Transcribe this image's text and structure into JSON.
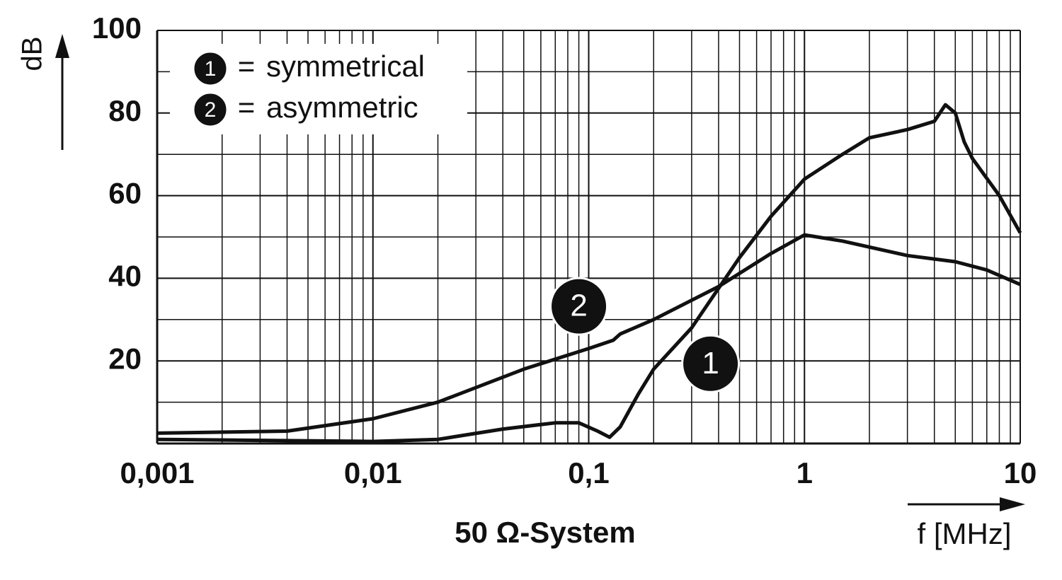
{
  "chart_data": {
    "type": "line",
    "x_label": "f [MHz]",
    "y_label": "dB",
    "caption": "50 Ω-System",
    "xlim": [
      0.001,
      10
    ],
    "xticks": [
      {
        "value": 0.001,
        "label": "0,001"
      },
      {
        "value": 0.01,
        "label": "0,01"
      },
      {
        "value": 0.1,
        "label": "0,1"
      },
      1,
      10
    ],
    "x_scale": "log",
    "ylim": [
      0,
      100
    ],
    "yticks": [
      20,
      40,
      60,
      80,
      100
    ],
    "grid": true,
    "minor_grid": true,
    "legend_position": "upper left",
    "legend_separator": "=",
    "series": [
      {
        "name": "symmetrical",
        "label": "1",
        "color": "#111111",
        "x": [
          0.001,
          0.01,
          0.02,
          0.04,
          0.07,
          0.09,
          0.11,
          0.125,
          0.14,
          0.17,
          0.2,
          0.3,
          0.5,
          0.7,
          1,
          1.5,
          2,
          3,
          4,
          4.5,
          5,
          5.5,
          6,
          8,
          10
        ],
        "values": [
          1,
          0.5,
          1,
          3.5,
          5,
          5,
          3,
          1.5,
          4,
          12,
          18,
          28,
          45,
          55,
          64,
          70,
          74,
          76,
          78,
          82,
          80,
          73,
          69,
          60,
          51
        ]
      },
      {
        "name": "asymmetric",
        "label": "2",
        "color": "#111111",
        "x": [
          0.001,
          0.004,
          0.01,
          0.02,
          0.05,
          0.1,
          0.13,
          0.14,
          0.2,
          0.4,
          0.7,
          1,
          1.5,
          3,
          5,
          7,
          10
        ],
        "values": [
          2.5,
          3,
          6,
          10,
          18,
          23,
          25,
          26.5,
          30,
          38,
          46,
          50.5,
          49,
          45.5,
          44,
          42,
          38.5
        ]
      }
    ],
    "annotations": [
      {
        "text": "2",
        "x": 0.09,
        "y": 33.2
      },
      {
        "text": "1",
        "x": 0.367,
        "y": 19.3
      }
    ]
  }
}
